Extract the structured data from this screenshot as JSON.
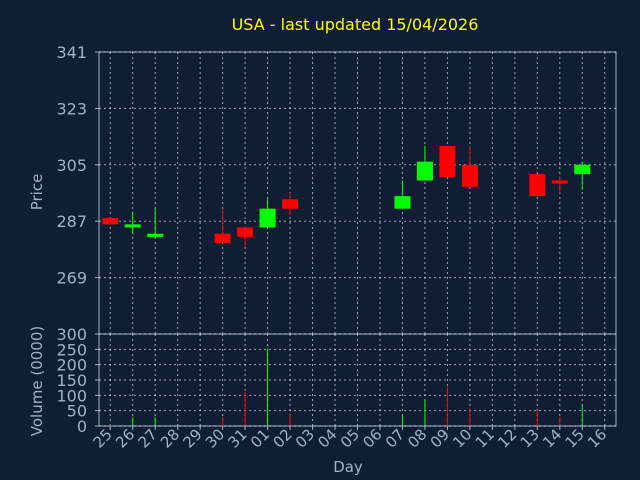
{
  "chart_data": {
    "type": "candlestick",
    "title": "USA - last updated 15/04/2026",
    "xlabel": "Day",
    "price_panel": {
      "ylabel": "Price",
      "ylim": [
        251,
        341
      ],
      "yticks": [
        341,
        323,
        305,
        287,
        269
      ]
    },
    "volume_panel": {
      "ylabel": "Volume (0000)",
      "ylim": [
        0,
        300
      ],
      "yticks": [
        300,
        250,
        200,
        150,
        100,
        50,
        0
      ]
    },
    "categories": [
      "25",
      "26",
      "27",
      "28",
      "29",
      "30",
      "31",
      "01",
      "02",
      "03",
      "04",
      "05",
      "06",
      "07",
      "08",
      "09",
      "10",
      "11",
      "12",
      "13",
      "14",
      "15",
      "16"
    ],
    "candles": [
      {
        "day": "25",
        "open": 288,
        "close": 286,
        "high": 288,
        "low": 286,
        "volume": 3
      },
      {
        "day": "26",
        "open": 285,
        "close": 286,
        "high": 290,
        "low": 283,
        "volume": 28
      },
      {
        "day": "27",
        "open": 282,
        "close": 283,
        "high": 291,
        "low": 282,
        "volume": 28
      },
      {
        "day": "30",
        "open": 283,
        "close": 280,
        "high": 291,
        "low": 280,
        "volume": 30
      },
      {
        "day": "31",
        "open": 285,
        "close": 282,
        "high": 285,
        "low": 279,
        "volume": 112
      },
      {
        "day": "01",
        "open": 285,
        "close": 291,
        "high": 294,
        "low": 285,
        "volume": 252
      },
      {
        "day": "02",
        "open": 294,
        "close": 291,
        "high": 296,
        "low": 289,
        "volume": 38
      },
      {
        "day": "07",
        "open": 291,
        "close": 295,
        "high": 300,
        "low": 291,
        "volume": 38
      },
      {
        "day": "08",
        "open": 300,
        "close": 306,
        "high": 311,
        "low": 300,
        "volume": 85
      },
      {
        "day": "09",
        "open": 311,
        "close": 301,
        "high": 311,
        "low": 301,
        "volume": 128
      },
      {
        "day": "10",
        "open": 305,
        "close": 298,
        "high": 311,
        "low": 298,
        "volume": 58
      },
      {
        "day": "13",
        "open": 302,
        "close": 295,
        "high": 302,
        "low": 295,
        "volume": 50
      },
      {
        "day": "14",
        "open": 300,
        "close": 299,
        "high": 301,
        "low": 296,
        "volume": 30
      },
      {
        "day": "15",
        "open": 302,
        "close": 305,
        "high": 306,
        "low": 297,
        "volume": 70
      }
    ],
    "colors": {
      "up": "#00ff00",
      "down": "#ff0000",
      "grid": "#ffffff",
      "axis": "#9fb3c8",
      "title": "#ffff00",
      "background": "#0f1e32"
    }
  }
}
